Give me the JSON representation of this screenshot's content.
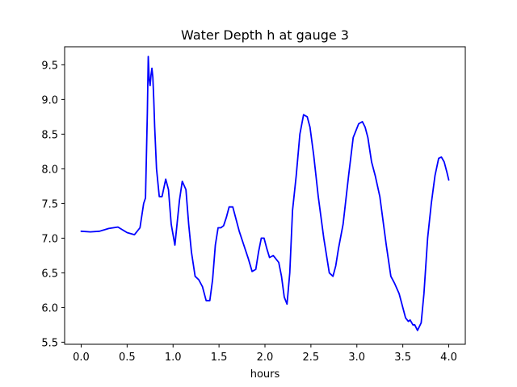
{
  "chart_data": {
    "type": "line",
    "title": "Water Depth h at gauge 3",
    "xlabel": "hours",
    "ylabel": "",
    "xlim": [
      -0.18,
      4.18
    ],
    "ylim": [
      5.47,
      9.76
    ],
    "xticks": [
      0.0,
      0.5,
      1.0,
      1.5,
      2.0,
      2.5,
      3.0,
      3.5,
      4.0
    ],
    "xtick_labels": [
      "0.0",
      "0.5",
      "1.0",
      "1.5",
      "2.0",
      "2.5",
      "3.0",
      "3.5",
      "4.0"
    ],
    "yticks": [
      5.5,
      6.0,
      6.5,
      7.0,
      7.5,
      8.0,
      8.5,
      9.0,
      9.5
    ],
    "ytick_labels": [
      "5.5",
      "6.0",
      "6.5",
      "7.0",
      "7.5",
      "8.0",
      "8.5",
      "9.0",
      "9.5"
    ],
    "grid": false,
    "series": [
      {
        "color": "#0000ff",
        "x": [
          0.0,
          0.1,
          0.2,
          0.3,
          0.4,
          0.5,
          0.58,
          0.64,
          0.68,
          0.7,
          0.72,
          0.73,
          0.74,
          0.75,
          0.76,
          0.77,
          0.78,
          0.79,
          0.8,
          0.82,
          0.85,
          0.88,
          0.92,
          0.95,
          0.98,
          1.02,
          1.07,
          1.1,
          1.14,
          1.17,
          1.2,
          1.24,
          1.28,
          1.32,
          1.36,
          1.4,
          1.43,
          1.46,
          1.49,
          1.52,
          1.55,
          1.58,
          1.61,
          1.65,
          1.68,
          1.72,
          1.77,
          1.82,
          1.86,
          1.9,
          1.93,
          1.96,
          1.99,
          2.02,
          2.05,
          2.09,
          2.12,
          2.15,
          2.18,
          2.21,
          2.24,
          2.27,
          2.3,
          2.34,
          2.38,
          2.42,
          2.46,
          2.49,
          2.53,
          2.58,
          2.64,
          2.7,
          2.74,
          2.77,
          2.8,
          2.85,
          2.91,
          2.96,
          3.02,
          3.06,
          3.09,
          3.12,
          3.16,
          3.2,
          3.25,
          3.32,
          3.37,
          3.41,
          3.46,
          3.5,
          3.53,
          3.56,
          3.58,
          3.61,
          3.63,
          3.66,
          3.7,
          3.73,
          3.77,
          3.81,
          3.85,
          3.89,
          3.92,
          3.95,
          3.98,
          4.0
        ],
        "y": [
          7.1,
          7.09,
          7.1,
          7.14,
          7.16,
          7.08,
          7.05,
          7.15,
          7.5,
          7.58,
          8.8,
          9.62,
          9.3,
          9.2,
          9.35,
          9.45,
          9.32,
          9.0,
          8.6,
          8.0,
          7.6,
          7.6,
          7.85,
          7.7,
          7.2,
          6.9,
          7.55,
          7.82,
          7.7,
          7.2,
          6.8,
          6.45,
          6.4,
          6.3,
          6.1,
          6.1,
          6.4,
          6.9,
          7.15,
          7.15,
          7.18,
          7.3,
          7.45,
          7.45,
          7.3,
          7.1,
          6.9,
          6.7,
          6.52,
          6.55,
          6.8,
          7.0,
          7.0,
          6.85,
          6.72,
          6.75,
          6.7,
          6.65,
          6.45,
          6.15,
          6.05,
          6.5,
          7.4,
          7.9,
          8.5,
          8.78,
          8.75,
          8.6,
          8.2,
          7.6,
          7.0,
          6.5,
          6.45,
          6.6,
          6.85,
          7.2,
          7.9,
          8.45,
          8.65,
          8.68,
          8.6,
          8.45,
          8.1,
          7.9,
          7.6,
          6.9,
          6.45,
          6.35,
          6.2,
          6.0,
          5.85,
          5.8,
          5.82,
          5.75,
          5.75,
          5.67,
          5.78,
          6.2,
          7.0,
          7.5,
          7.9,
          8.15,
          8.17,
          8.1,
          7.95,
          7.84
        ]
      }
    ]
  }
}
